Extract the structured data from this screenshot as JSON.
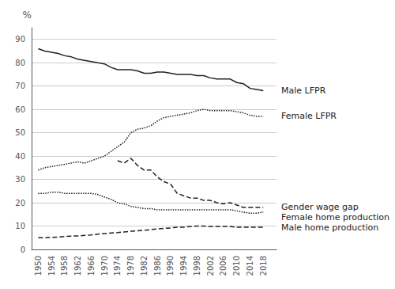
{
  "chart_data": {
    "type": "line",
    "ylabel": "%",
    "x": [
      1950,
      1952,
      1954,
      1956,
      1958,
      1960,
      1962,
      1964,
      1966,
      1968,
      1970,
      1972,
      1974,
      1976,
      1978,
      1980,
      1982,
      1984,
      1986,
      1988,
      1990,
      1992,
      1994,
      1996,
      1998,
      2000,
      2002,
      2004,
      2006,
      2008,
      2010,
      2012,
      2014,
      2016,
      2018
    ],
    "series": [
      {
        "name": "Male LFPR",
        "color": "#222222",
        "line_style": "solid",
        "values": [
          86,
          85,
          84.5,
          84,
          83,
          82.5,
          81.5,
          81,
          80.5,
          80,
          79.5,
          78,
          77,
          77,
          77,
          76.5,
          75.5,
          75.5,
          76,
          76,
          75.5,
          75,
          75,
          75,
          74.5,
          74.5,
          73.5,
          73,
          73,
          73,
          71.5,
          71,
          69,
          68.5,
          68
        ]
      },
      {
        "name": "Female LFPR",
        "color": "#222222",
        "line_style": "dotted",
        "values": [
          34,
          35,
          35.5,
          36,
          36.5,
          37,
          37.5,
          37,
          38,
          39,
          40,
          42,
          44,
          46,
          50,
          51.5,
          52,
          53,
          55,
          56.5,
          57,
          57.5,
          58,
          58.5,
          59.5,
          60,
          59.5,
          59.5,
          59.5,
          59.5,
          59,
          58.5,
          57.5,
          57,
          57
        ]
      },
      {
        "name": "Gender wage gap",
        "color": "#222222",
        "line_style": "dashed",
        "values": [
          null,
          null,
          null,
          null,
          null,
          null,
          null,
          null,
          null,
          null,
          null,
          null,
          38,
          37,
          39,
          36,
          34,
          34,
          31,
          29,
          28,
          24,
          23,
          22,
          22,
          21,
          21,
          20,
          19.5,
          20,
          19,
          18,
          18,
          18,
          18
        ]
      },
      {
        "name": "Female home production",
        "color": "#222222",
        "line_style": "dotted",
        "values": [
          24,
          24,
          24.5,
          24.5,
          24,
          24,
          24,
          24,
          24,
          23.5,
          22.5,
          21.5,
          20,
          19.5,
          18.5,
          18,
          17.5,
          17.5,
          17,
          17,
          17,
          17,
          17,
          17,
          17,
          17,
          17,
          17,
          17,
          17,
          16.5,
          16,
          15.5,
          15.5,
          16
        ]
      },
      {
        "name": "Male home production",
        "color": "#222222",
        "line_style": "dashed",
        "values": [
          5,
          5,
          5.2,
          5.3,
          5.5,
          5.7,
          5.8,
          6,
          6.2,
          6.5,
          6.8,
          7,
          7.2,
          7.5,
          7.8,
          8,
          8.2,
          8.5,
          8.8,
          9,
          9.2,
          9.5,
          9.5,
          9.8,
          10,
          10,
          9.8,
          9.8,
          9.8,
          9.8,
          9.5,
          9.5,
          9.5,
          9.5,
          9.5
        ]
      }
    ],
    "xlim": [
      1948,
      2022
    ],
    "xticks": [
      1950,
      1954,
      1958,
      1962,
      1966,
      1970,
      1974,
      1978,
      1982,
      1986,
      1990,
      1994,
      1998,
      2002,
      2006,
      2010,
      2014,
      2018
    ],
    "ylim": [
      0,
      95
    ],
    "yticks": [
      0,
      10,
      20,
      30,
      40,
      50,
      60,
      70,
      80,
      90
    ],
    "grid": true
  }
}
